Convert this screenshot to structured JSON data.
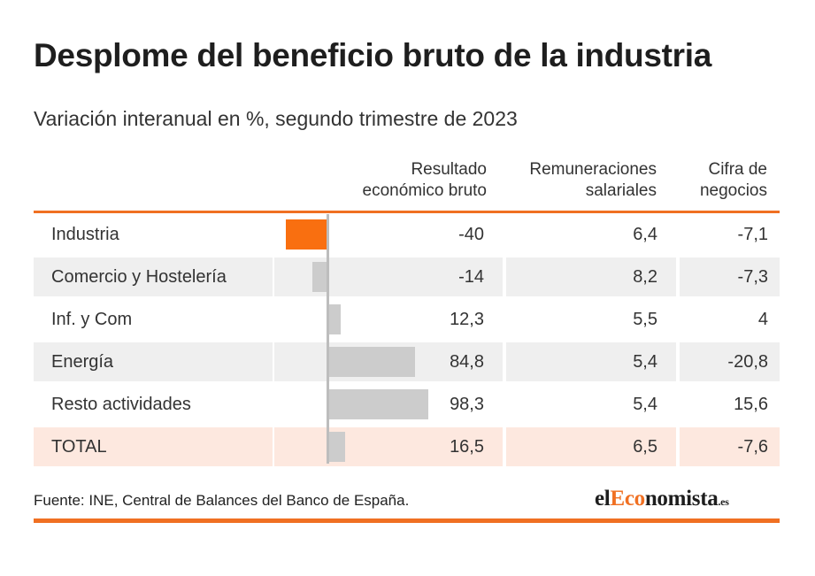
{
  "title": "Desplome del beneficio bruto de la industria",
  "subtitle": "Variación interanual en %, segundo trimestre de 2023",
  "columns": {
    "resultado": "Resultado\neconómico bruto",
    "remuneraciones": "Remuneraciones\nsalariales",
    "cifra": "Cifra de\nnegocios"
  },
  "source": "Fuente: INE, Central de Balances del Banco de España.",
  "logo": {
    "pre": "el",
    "accent": "Eco",
    "post": "nomista",
    "tld": ".es"
  },
  "colors": {
    "accent": "#f07022",
    "highlight_bar": "#f96f10",
    "bar": "#cccccc",
    "total_row": "#fde8df",
    "shaded_row": "#efefef"
  },
  "chart_data": {
    "type": "table",
    "title": "Desplome del beneficio bruto de la industria",
    "subtitle": "Variación interanual en %, segundo trimestre de 2023",
    "categories": [
      "Industria",
      "Comercio y Hostelería",
      "Inf. y Com",
      "Energía",
      "Resto actividades",
      "TOTAL"
    ],
    "series": [
      {
        "name": "Resultado económico bruto",
        "values": [
          -40,
          -14,
          12.3,
          84.8,
          98.3,
          16.5
        ],
        "labels": [
          "-40",
          "-14",
          "12,3",
          "84,8",
          "98,3",
          "16,5"
        ]
      },
      {
        "name": "Remuneraciones salariales",
        "values": [
          6.4,
          8.2,
          5.5,
          5.4,
          5.4,
          6.5
        ],
        "labels": [
          "6,4",
          "8,2",
          "5,5",
          "5,4",
          "5,4",
          "6,5"
        ]
      },
      {
        "name": "Cifra de negocios",
        "values": [
          -7.1,
          -7.3,
          4,
          -20.8,
          15.6,
          -7.6
        ],
        "labels": [
          "-7,1",
          "-7,3",
          "4",
          "-20,8",
          "15,6",
          "-7,6"
        ]
      }
    ],
    "bar_series": "Resultado económico bruto",
    "highlight": "Industria"
  }
}
